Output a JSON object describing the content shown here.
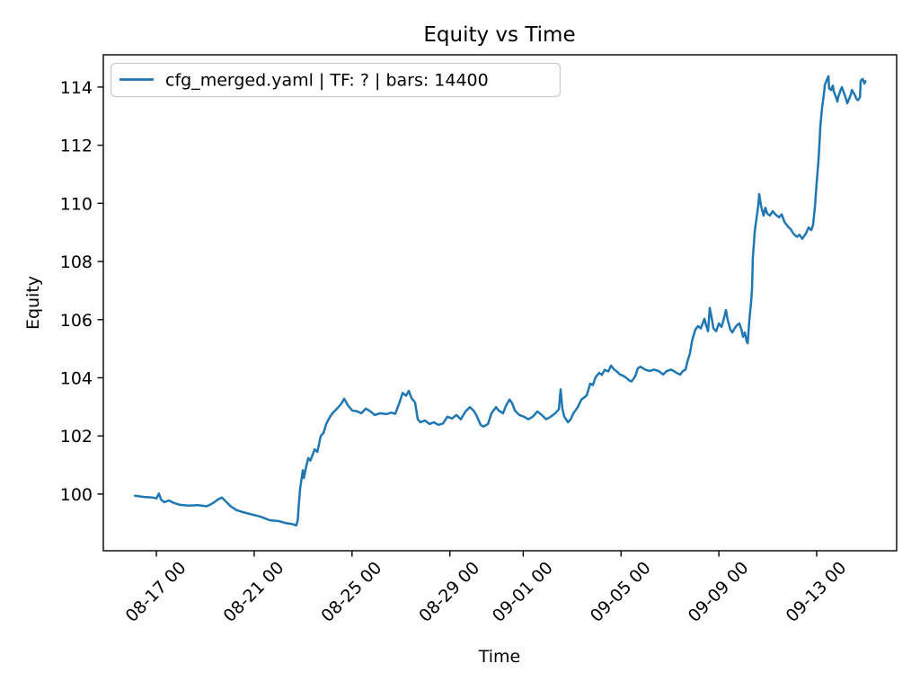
{
  "chart_data": {
    "type": "line",
    "title": "Equity vs Time",
    "xlabel": "Time",
    "ylabel": "Equity",
    "grid": false,
    "legend": {
      "position": "upper left",
      "entries": [
        "cfg_merged.yaml | TF: ? | bars: 14400"
      ]
    },
    "x_unit": "days relative to tick 08-17 00",
    "xlim": [
      -2.17,
      30.27
    ],
    "ylim": [
      98.05,
      115.11
    ],
    "y_ticks": [
      100,
      102,
      104,
      106,
      108,
      110,
      112,
      114
    ],
    "x_ticks": [
      {
        "d": 0,
        "label": "08-17 00"
      },
      {
        "d": 4,
        "label": "08-21 00"
      },
      {
        "d": 8,
        "label": "08-25 00"
      },
      {
        "d": 12,
        "label": "08-29 00"
      },
      {
        "d": 15,
        "label": "09-01 00"
      },
      {
        "d": 19,
        "label": "09-05 00"
      },
      {
        "d": 23,
        "label": "09-09 00"
      },
      {
        "d": 27,
        "label": "09-13 00"
      }
    ],
    "series": [
      {
        "name": "cfg_merged.yaml | TF: ? | bars: 14400",
        "color": "#1f77b4",
        "points": [
          [
            -0.88,
            99.94
          ],
          [
            -0.5,
            99.9
          ],
          [
            -0.15,
            99.88
          ],
          [
            0.0,
            99.85
          ],
          [
            0.1,
            100.02
          ],
          [
            0.2,
            99.8
          ],
          [
            0.33,
            99.72
          ],
          [
            0.51,
            99.78
          ],
          [
            0.7,
            99.7
          ],
          [
            0.96,
            99.63
          ],
          [
            1.32,
            99.6
          ],
          [
            1.7,
            99.62
          ],
          [
            2.06,
            99.58
          ],
          [
            2.3,
            99.68
          ],
          [
            2.53,
            99.82
          ],
          [
            2.68,
            99.88
          ],
          [
            2.87,
            99.72
          ],
          [
            3.05,
            99.57
          ],
          [
            3.27,
            99.45
          ],
          [
            3.53,
            99.38
          ],
          [
            3.9,
            99.3
          ],
          [
            4.26,
            99.22
          ],
          [
            4.63,
            99.1
          ],
          [
            5.0,
            99.07
          ],
          [
            5.3,
            99.0
          ],
          [
            5.55,
            98.97
          ],
          [
            5.72,
            98.92
          ],
          [
            5.78,
            99.1
          ],
          [
            5.82,
            99.6
          ],
          [
            5.88,
            100.2
          ],
          [
            5.95,
            100.6
          ],
          [
            5.99,
            100.82
          ],
          [
            6.03,
            100.55
          ],
          [
            6.14,
            101.0
          ],
          [
            6.21,
            101.24
          ],
          [
            6.3,
            101.15
          ],
          [
            6.47,
            101.54
          ],
          [
            6.58,
            101.45
          ],
          [
            6.72,
            102.0
          ],
          [
            6.83,
            102.1
          ],
          [
            6.94,
            102.4
          ],
          [
            7.09,
            102.65
          ],
          [
            7.2,
            102.78
          ],
          [
            7.39,
            102.94
          ],
          [
            7.57,
            103.12
          ],
          [
            7.68,
            103.28
          ],
          [
            7.83,
            103.05
          ],
          [
            8.01,
            102.87
          ],
          [
            8.19,
            102.85
          ],
          [
            8.38,
            102.78
          ],
          [
            8.56,
            102.94
          ],
          [
            8.74,
            102.85
          ],
          [
            8.93,
            102.72
          ],
          [
            9.15,
            102.78
          ],
          [
            9.41,
            102.75
          ],
          [
            9.6,
            102.8
          ],
          [
            9.77,
            102.76
          ],
          [
            9.96,
            103.2
          ],
          [
            10.07,
            103.48
          ],
          [
            10.21,
            103.38
          ],
          [
            10.32,
            103.55
          ],
          [
            10.43,
            103.3
          ],
          [
            10.58,
            103.15
          ],
          [
            10.69,
            102.57
          ],
          [
            10.8,
            102.47
          ],
          [
            10.98,
            102.53
          ],
          [
            11.17,
            102.41
          ],
          [
            11.35,
            102.47
          ],
          [
            11.53,
            102.38
          ],
          [
            11.72,
            102.43
          ],
          [
            11.9,
            102.66
          ],
          [
            12.09,
            102.6
          ],
          [
            12.27,
            102.72
          ],
          [
            12.45,
            102.57
          ],
          [
            12.64,
            102.84
          ],
          [
            12.82,
            102.99
          ],
          [
            12.97,
            102.87
          ],
          [
            13.08,
            102.72
          ],
          [
            13.26,
            102.38
          ],
          [
            13.37,
            102.32
          ],
          [
            13.56,
            102.41
          ],
          [
            13.7,
            102.78
          ],
          [
            13.89,
            102.99
          ],
          [
            14.0,
            102.87
          ],
          [
            14.18,
            102.78
          ],
          [
            14.29,
            103.03
          ],
          [
            14.44,
            103.25
          ],
          [
            14.55,
            103.12
          ],
          [
            14.66,
            102.87
          ],
          [
            14.84,
            102.72
          ],
          [
            15.03,
            102.66
          ],
          [
            15.21,
            102.57
          ],
          [
            15.39,
            102.66
          ],
          [
            15.58,
            102.84
          ],
          [
            15.76,
            102.72
          ],
          [
            15.94,
            102.57
          ],
          [
            16.13,
            102.66
          ],
          [
            16.31,
            102.78
          ],
          [
            16.46,
            102.92
          ],
          [
            16.53,
            103.6
          ],
          [
            16.6,
            102.95
          ],
          [
            16.68,
            102.66
          ],
          [
            16.83,
            102.47
          ],
          [
            16.94,
            102.57
          ],
          [
            17.05,
            102.78
          ],
          [
            17.23,
            102.99
          ],
          [
            17.38,
            103.25
          ],
          [
            17.49,
            103.32
          ],
          [
            17.6,
            103.4
          ],
          [
            17.74,
            103.8
          ],
          [
            17.85,
            103.75
          ],
          [
            17.96,
            104.02
          ],
          [
            18.11,
            104.17
          ],
          [
            18.22,
            104.1
          ],
          [
            18.33,
            104.27
          ],
          [
            18.48,
            104.22
          ],
          [
            18.59,
            104.42
          ],
          [
            18.7,
            104.3
          ],
          [
            18.85,
            104.2
          ],
          [
            18.96,
            104.11
          ],
          [
            19.07,
            104.08
          ],
          [
            19.21,
            104.0
          ],
          [
            19.32,
            103.92
          ],
          [
            19.43,
            103.87
          ],
          [
            19.58,
            104.05
          ],
          [
            19.69,
            104.33
          ],
          [
            19.8,
            104.38
          ],
          [
            19.99,
            104.28
          ],
          [
            20.17,
            104.23
          ],
          [
            20.35,
            104.28
          ],
          [
            20.54,
            104.23
          ],
          [
            20.72,
            104.11
          ],
          [
            20.87,
            104.23
          ],
          [
            21.05,
            104.28
          ],
          [
            21.16,
            104.23
          ],
          [
            21.27,
            104.17
          ],
          [
            21.42,
            104.11
          ],
          [
            21.53,
            104.23
          ],
          [
            21.64,
            104.28
          ],
          [
            21.71,
            104.54
          ],
          [
            21.82,
            104.85
          ],
          [
            21.9,
            105.25
          ],
          [
            21.97,
            105.47
          ],
          [
            22.04,
            105.66
          ],
          [
            22.15,
            105.78
          ],
          [
            22.26,
            105.7
          ],
          [
            22.34,
            105.87
          ],
          [
            22.41,
            106.03
          ],
          [
            22.48,
            105.8
          ],
          [
            22.56,
            105.6
          ],
          [
            22.63,
            106.4
          ],
          [
            22.7,
            106.1
          ],
          [
            22.78,
            105.7
          ],
          [
            22.89,
            105.6
          ],
          [
            23.0,
            105.87
          ],
          [
            23.11,
            105.75
          ],
          [
            23.18,
            105.95
          ],
          [
            23.29,
            106.33
          ],
          [
            23.36,
            106.0
          ],
          [
            23.47,
            105.66
          ],
          [
            23.55,
            105.56
          ],
          [
            23.66,
            105.72
          ],
          [
            23.73,
            105.8
          ],
          [
            23.84,
            105.87
          ],
          [
            23.92,
            105.66
          ],
          [
            23.99,
            105.41
          ],
          [
            24.06,
            105.56
          ],
          [
            24.14,
            105.25
          ],
          [
            24.18,
            105.19
          ],
          [
            24.25,
            106.0
          ],
          [
            24.32,
            106.6
          ],
          [
            24.36,
            107.1
          ],
          [
            24.39,
            108.1
          ],
          [
            24.47,
            109.05
          ],
          [
            24.54,
            109.48
          ],
          [
            24.61,
            109.9
          ],
          [
            24.65,
            110.32
          ],
          [
            24.72,
            109.95
          ],
          [
            24.76,
            109.8
          ],
          [
            24.83,
            109.58
          ],
          [
            24.9,
            109.85
          ],
          [
            24.98,
            109.65
          ],
          [
            25.09,
            109.58
          ],
          [
            25.2,
            109.73
          ],
          [
            25.31,
            109.62
          ],
          [
            25.46,
            109.52
          ],
          [
            25.57,
            109.62
          ],
          [
            25.68,
            109.36
          ],
          [
            25.83,
            109.2
          ],
          [
            25.94,
            109.11
          ],
          [
            26.05,
            108.96
          ],
          [
            26.19,
            108.85
          ],
          [
            26.3,
            108.92
          ],
          [
            26.41,
            108.78
          ],
          [
            26.56,
            108.96
          ],
          [
            26.67,
            109.17
          ],
          [
            26.78,
            109.08
          ],
          [
            26.85,
            109.25
          ],
          [
            26.93,
            109.89
          ],
          [
            27.0,
            110.72
          ],
          [
            27.07,
            111.43
          ],
          [
            27.11,
            112.0
          ],
          [
            27.15,
            112.67
          ],
          [
            27.22,
            113.29
          ],
          [
            27.3,
            113.8
          ],
          [
            27.33,
            114.06
          ],
          [
            27.4,
            114.22
          ],
          [
            27.48,
            114.37
          ],
          [
            27.51,
            113.95
          ],
          [
            27.59,
            113.9
          ],
          [
            27.66,
            114.05
          ],
          [
            27.7,
            113.85
          ],
          [
            27.77,
            113.7
          ],
          [
            27.85,
            113.5
          ],
          [
            27.88,
            113.65
          ],
          [
            27.96,
            113.85
          ],
          [
            28.03,
            114.0
          ],
          [
            28.07,
            113.9
          ],
          [
            28.14,
            113.75
          ],
          [
            28.22,
            113.54
          ],
          [
            28.25,
            113.44
          ],
          [
            28.33,
            113.6
          ],
          [
            28.4,
            113.75
          ],
          [
            28.44,
            113.9
          ],
          [
            28.51,
            113.8
          ],
          [
            28.58,
            113.7
          ],
          [
            28.62,
            113.6
          ],
          [
            28.69,
            113.55
          ],
          [
            28.77,
            113.65
          ],
          [
            28.8,
            114.22
          ],
          [
            28.88,
            114.28
          ],
          [
            28.95,
            114.12
          ],
          [
            28.99,
            114.2
          ]
        ]
      }
    ]
  },
  "colors": {
    "line": "#1f77b4",
    "spine": "#000000",
    "legend_border": "#cccccc",
    "background": "#ffffff"
  }
}
